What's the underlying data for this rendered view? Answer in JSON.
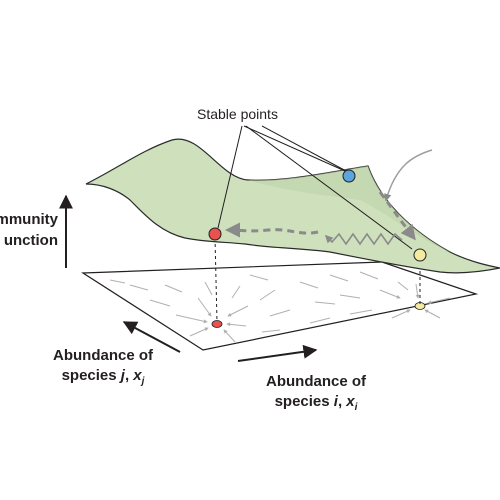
{
  "labels": {
    "stable_points": "Stable points",
    "community_function_line1": "mmunity",
    "community_function_line2": "unction",
    "species_j": {
      "line1": "Abundance of",
      "prefix": "species ",
      "var": "j",
      "sep": ", ",
      "x": "x",
      "sub": "j"
    },
    "species_i": {
      "line1": "Abundance of",
      "prefix": "species ",
      "var": "i",
      "sep": ", ",
      "x": "x",
      "sub": "i"
    }
  },
  "colors": {
    "surface_fill": "#cfe0bd",
    "surface_stroke": "#2b2b2b",
    "plane_stroke": "#231f20",
    "arrow_gray": "#9d9d9d",
    "dashed_path": "#8a8a8a",
    "point_red": "#e8534f",
    "point_blue": "#5aa5dc",
    "point_yellow": "#f5eba0",
    "text": "#231f20"
  },
  "icons": {
    "axis_arrow": "arrow-up-icon",
    "diagonal_arrow": "arrow-diagonal-icon"
  }
}
